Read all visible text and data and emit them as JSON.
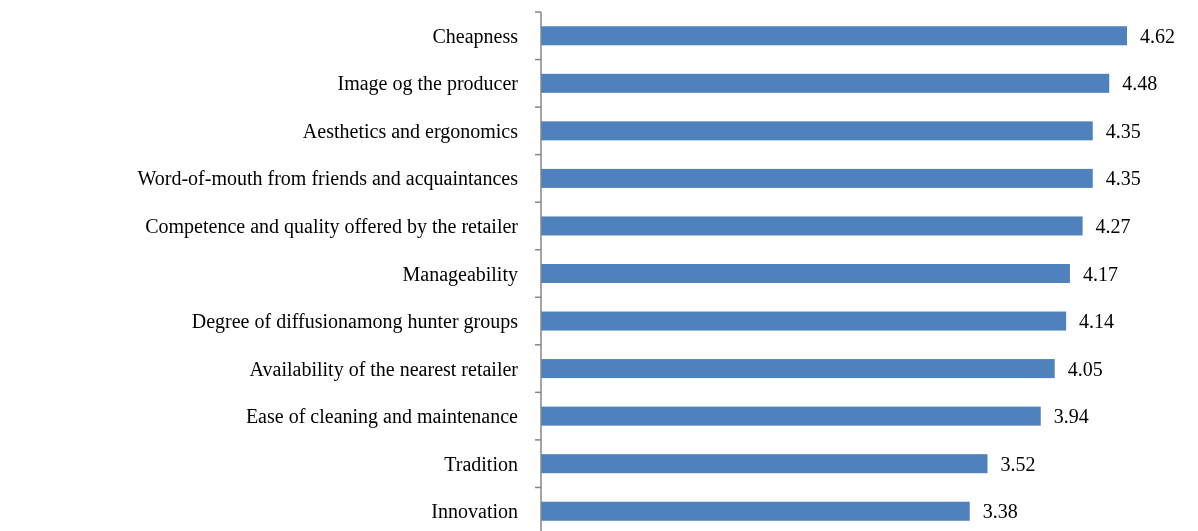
{
  "chart_data": {
    "type": "bar",
    "orientation": "horizontal",
    "categories": [
      "Cheapness",
      "Image og the producer",
      "Aesthetics and ergonomics",
      "Word-of-mouth from friends and acquaintances",
      "Competence and quality offered by the retailer",
      "Manageability",
      "Degree of diffusionamong hunter groups",
      "Availability of the nearest retailer",
      "Ease of cleaning and maintenance",
      "Tradition",
      "Innovation"
    ],
    "values": [
      4.62,
      4.48,
      4.35,
      4.35,
      4.27,
      4.17,
      4.14,
      4.05,
      3.94,
      3.52,
      3.38
    ],
    "color": "#4f81bd",
    "data_labels": true
  }
}
